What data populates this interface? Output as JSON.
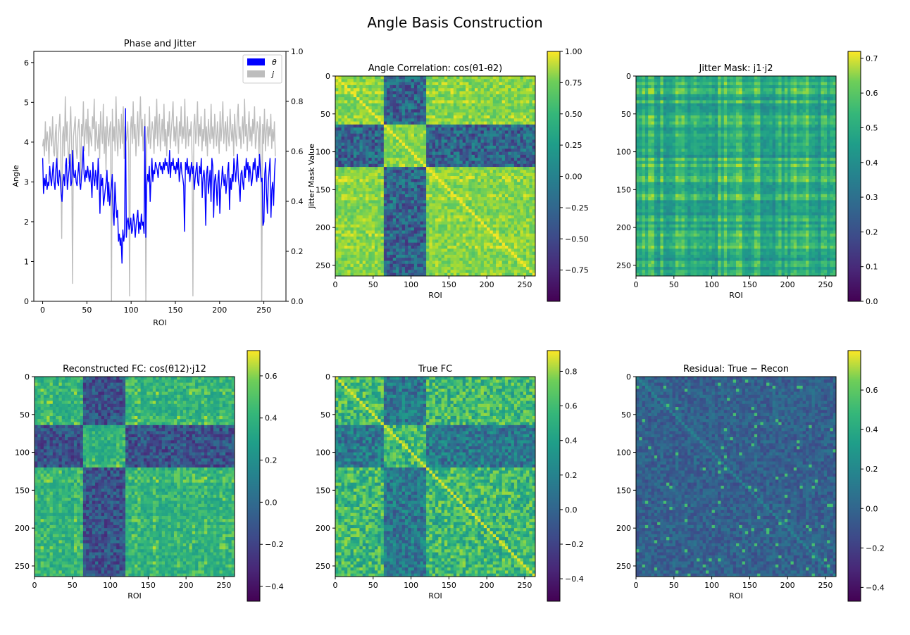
{
  "figure": {
    "suptitle": "Angle Basis Construction"
  },
  "colors": {
    "theta": "#0000ff",
    "jitter": "#bdbdbd"
  },
  "chart_data": [
    {
      "type": "line",
      "title": "Phase and Jitter",
      "xlabel": "ROI",
      "ylabel": "Angle",
      "y2label": "Jitter Mask Value",
      "xlim": [
        -10,
        275
      ],
      "ylim": [
        0,
        6.28
      ],
      "y2lim": [
        0,
        1.0
      ],
      "xticks": [
        0,
        50,
        100,
        150,
        200,
        250
      ],
      "yticks": [
        0,
        1,
        2,
        3,
        4,
        5,
        6
      ],
      "y2ticks": [
        0.0,
        0.2,
        0.4,
        0.6,
        0.8,
        1.0
      ],
      "legend": {
        "placement": "top-right",
        "labels": [
          "θ",
          "j"
        ]
      },
      "series": [
        {
          "name": "θ",
          "axis": "left",
          "color": "#0000ff",
          "x_start": 0,
          "x_end": 263,
          "values": [
            3.6,
            2.7,
            3.1,
            2.9,
            3.2,
            2.8,
            3.0,
            2.9,
            3.4,
            3.1,
            2.9,
            3.2,
            3.5,
            3.0,
            2.8,
            3.3,
            3.6,
            3.0,
            2.9,
            3.3,
            3.1,
            2.7,
            2.5,
            3.0,
            3.2,
            2.9,
            3.4,
            3.6,
            2.8,
            3.1,
            3.3,
            3.7,
            2.9,
            3.0,
            3.8,
            3.2,
            3.1,
            3.3,
            3.0,
            2.9,
            3.2,
            3.5,
            3.0,
            2.8,
            3.1,
            3.4,
            3.9,
            3.2,
            3.0,
            3.3,
            3.1,
            3.4,
            3.2,
            3.0,
            3.3,
            3.0,
            2.6,
            3.5,
            3.1,
            2.9,
            3.3,
            3.1,
            2.8,
            3.6,
            3.1,
            2.2,
            3.2,
            2.9,
            3.1,
            2.4,
            2.6,
            2.8,
            3.0,
            3.3,
            2.5,
            3.0,
            2.4,
            2.7,
            2.9,
            3.2,
            2.2,
            1.9,
            3.0,
            2.5,
            2.1,
            2.3,
            1.5,
            1.7,
            1.4,
            1.6,
            0.95,
            1.8,
            1.5,
            1.7,
            4.85,
            1.6,
            2.0,
            2.1,
            1.8,
            1.9,
            2.1,
            1.7,
            1.8,
            2.2,
            2.0,
            1.6,
            1.9,
            2.1,
            2.3,
            1.7,
            2.0,
            1.8,
            2.2,
            1.9,
            2.0,
            1.7,
            4.4,
            1.6,
            2.9,
            3.2,
            3.0,
            3.4,
            2.5,
            3.1,
            3.6,
            3.0,
            3.3,
            3.2,
            3.5,
            3.4,
            3.3,
            3.1,
            3.4,
            3.5,
            3.3,
            3.4,
            3.2,
            3.5,
            3.3,
            3.6,
            3.4,
            3.5,
            3.3,
            3.2,
            3.8,
            3.1,
            3.5,
            3.4,
            3.6,
            3.3,
            3.4,
            3.2,
            3.5,
            3.3,
            3.6,
            3.0,
            3.3,
            3.5,
            3.2,
            3.1,
            2.9,
            1.75,
            3.5,
            3.3,
            3.6,
            3.2,
            3.4,
            3.0,
            3.3,
            3.5,
            3.2,
            3.4,
            2.8,
            3.1,
            3.3,
            3.5,
            3.0,
            2.9,
            3.4,
            3.2,
            3.6,
            2.6,
            3.1,
            3.3,
            3.0,
            1.9,
            3.2,
            3.4,
            2.7,
            3.0,
            3.3,
            2.5,
            3.6,
            3.4,
            2.1,
            3.0,
            3.2,
            2.9,
            2.4,
            3.1,
            3.3,
            2.2,
            2.8,
            3.0,
            3.4,
            3.1,
            2.9,
            3.2,
            2.7,
            3.0,
            3.3,
            3.5,
            2.3,
            3.1,
            2.8,
            3.2,
            3.0,
            3.6,
            3.3,
            3.0,
            3.4,
            3.7,
            3.1,
            2.9,
            2.5,
            3.2,
            3.3,
            3.0,
            2.8,
            3.4,
            3.1,
            3.6,
            3.3,
            3.5,
            3.0,
            3.4,
            3.2,
            2.9,
            3.1,
            3.5,
            3.3,
            3.6,
            3.2,
            3.0,
            3.4,
            3.1,
            3.7,
            3.3,
            3.0,
            3.1,
            1.9,
            2.0,
            3.2,
            3.5,
            2.7,
            2.2,
            3.0,
            3.3,
            3.6,
            2.1,
            2.8,
            3.0,
            2.4,
            3.2,
            3.6
          ]
        },
        {
          "name": "j",
          "axis": "right",
          "color": "#bdbdbd",
          "x_start": 0,
          "x_end": 263,
          "values": [
            0.62,
            0.65,
            0.58,
            0.72,
            0.6,
            0.68,
            0.64,
            0.55,
            0.7,
            0.66,
            0.62,
            0.74,
            0.6,
            0.58,
            0.67,
            0.71,
            0.52,
            0.63,
            0.69,
            0.75,
            0.61,
            0.25,
            0.66,
            0.7,
            0.58,
            0.82,
            0.64,
            0.72,
            0.6,
            0.55,
            0.68,
            0.78,
            0.62,
            0.07,
            0.66,
            0.7,
            0.74,
            0.61,
            0.57,
            0.69,
            0.73,
            0.64,
            0.48,
            0.71,
            0.66,
            0.8,
            0.6,
            0.68,
            0.73,
            0.63,
            0.77,
            0.58,
            0.7,
            0.66,
            0.62,
            0.74,
            0.69,
            0.81,
            0.6,
            0.72,
            0.65,
            0.61,
            0.71,
            0.57,
            0.76,
            0.68,
            0.63,
            0.79,
            0.59,
            0.7,
            0.52,
            0.74,
            0.66,
            0.62,
            0.69,
            0.72,
            0.0,
            0.77,
            0.64,
            0.7,
            0.6,
            0.82,
            0.66,
            0.58,
            0.73,
            0.68,
            0.61,
            0.75,
            0.63,
            0.78,
            0.57,
            0.7,
            0.64,
            0.66,
            0.72,
            0.6,
            0.02,
            0.69,
            0.74,
            0.63,
            0.8,
            0.65,
            0.71,
            0.58,
            0.67,
            0.76,
            0.62,
            0.7,
            0.82,
            0.66,
            0.73,
            0.6,
            0.68,
            0.75,
            0.0,
            0.64,
            0.7,
            0.63,
            0.78,
            0.61,
            0.66,
            0.72,
            0.68,
            0.59,
            0.74,
            0.65,
            0.81,
            0.62,
            0.7,
            0.75,
            0.6,
            0.67,
            0.73,
            0.64,
            0.79,
            0.62,
            0.69,
            0.58,
            0.72,
            0.66,
            0.76,
            0.61,
            0.68,
            0.73,
            0.8,
            0.64,
            0.7,
            0.62,
            0.74,
            0.67,
            0.59,
            0.72,
            0.66,
            0.78,
            0.63,
            0.7,
            0.65,
            0.81,
            0.61,
            0.68,
            0.74,
            0.62,
            0.69,
            0.66,
            0.72,
            0.58,
            0.02,
            0.7,
            0.75,
            0.63,
            0.68,
            0.8,
            0.62,
            0.71,
            0.66,
            0.74,
            0.6,
            0.69,
            0.64,
            0.77,
            0.62,
            0.7,
            0.58,
            0.73,
            0.67,
            0.63,
            0.79,
            0.65,
            0.7,
            0.61,
            0.75,
            0.68,
            0.62,
            0.72,
            0.66,
            0.59,
            0.76,
            0.64,
            0.7,
            0.8,
            0.63,
            0.68,
            0.72,
            0.6,
            0.74,
            0.66,
            0.62,
            0.77,
            0.69,
            0.64,
            0.71,
            0.58,
            0.75,
            0.67,
            0.62,
            0.73,
            0.79,
            0.65,
            0.7,
            0.61,
            0.68,
            0.74,
            0.63,
            0.81,
            0.66,
            0.71,
            0.6,
            0.69,
            0.76,
            0.64,
            0.7,
            0.62,
            0.73,
            0.67,
            0.78,
            0.61,
            0.65,
            0.72,
            0.69,
            0.58,
            0.74,
            0.66,
            0.0,
            0.71,
            0.63,
            0.77,
            0.6,
            0.68,
            0.73,
            0.62,
            0.7,
            0.66,
            0.75,
            0.61,
            0.69,
            0.64,
            0.72,
            0.58
          ]
        }
      ]
    },
    {
      "type": "heatmap",
      "title": "Angle Correlation: cos(θ1-θ2)",
      "title_parts": [
        "Angle Correlation: cos(",
        "θ",
        "1",
        "-",
        "θ",
        "2",
        ")"
      ],
      "xlabel": "ROI",
      "size": 264,
      "xticks": [
        0,
        50,
        100,
        150,
        200,
        250
      ],
      "yticks": [
        0,
        50,
        100,
        150,
        200,
        250
      ],
      "colorbar": {
        "min": -1.0,
        "max": 1.0,
        "ticks": [
          "1.00",
          "0.75",
          "0.50",
          "0.25",
          "0.00",
          "−0.25",
          "−0.50",
          "−0.75"
        ]
      },
      "blocks": [
        [
          0,
          64,
          "A"
        ],
        [
          64,
          78,
          "B"
        ],
        [
          78,
          118,
          "C"
        ],
        [
          118,
          264,
          "A"
        ]
      ]
    },
    {
      "type": "heatmap",
      "title": "Jitter Mask: j1·j2",
      "title_parts": [
        "Jitter Mask: ",
        "j",
        "1",
        "·",
        "j",
        "2"
      ],
      "xlabel": "ROI",
      "size": 264,
      "xticks": [
        0,
        50,
        100,
        150,
        200,
        250
      ],
      "yticks": [
        0,
        50,
        100,
        150,
        200,
        250
      ],
      "colorbar": {
        "min": 0.0,
        "max": 0.72,
        "ticks": [
          "0.7",
          "0.6",
          "0.5",
          "0.4",
          "0.3",
          "0.2",
          "0.1",
          "0.0"
        ]
      }
    },
    {
      "type": "heatmap",
      "title": "Reconstructed FC: cos(θ12)·j12",
      "title_parts": [
        "Reconstructed FC: cos(",
        "θ",
        "12",
        ")·",
        "j",
        "12"
      ],
      "xlabel": "ROI",
      "size": 264,
      "xticks": [
        0,
        50,
        100,
        150,
        200,
        250
      ],
      "yticks": [
        0,
        50,
        100,
        150,
        200,
        250
      ],
      "colorbar": {
        "min": -0.47,
        "max": 0.72,
        "ticks": [
          "0.6",
          "0.4",
          "0.2",
          "0.0",
          "−0.2",
          "−0.4"
        ]
      }
    },
    {
      "type": "heatmap",
      "title": "True FC",
      "xlabel": "ROI",
      "size": 264,
      "xticks": [
        0,
        50,
        100,
        150,
        200,
        250
      ],
      "yticks": [
        0,
        50,
        100,
        150,
        200,
        250
      ],
      "colorbar": {
        "min": -0.53,
        "max": 0.92,
        "ticks": [
          "0.8",
          "0.6",
          "0.4",
          "0.2",
          "0.0",
          "−0.2",
          "−0.4"
        ]
      }
    },
    {
      "type": "heatmap",
      "title": "Residual: True − Recon",
      "title_parts": [
        "Residual: ",
        "True − Recon"
      ],
      "xlabel": "ROI",
      "size": 264,
      "xticks": [
        0,
        50,
        100,
        150,
        200,
        250
      ],
      "yticks": [
        0,
        50,
        100,
        150,
        200,
        250
      ],
      "colorbar": {
        "min": -0.47,
        "max": 0.8,
        "ticks": [
          "0.6",
          "0.4",
          "0.2",
          "0.0",
          "−0.2",
          "−0.4"
        ]
      }
    }
  ]
}
